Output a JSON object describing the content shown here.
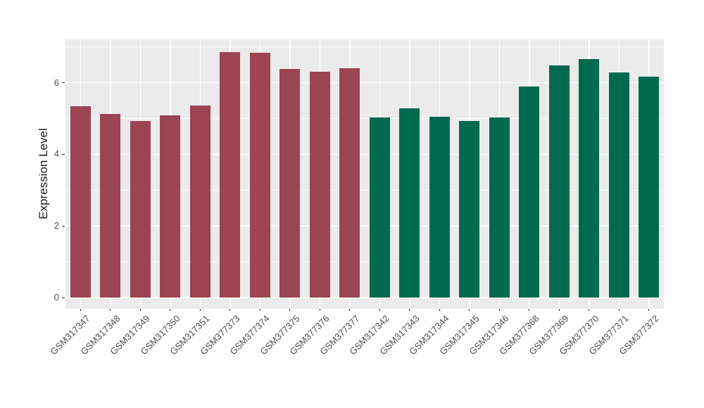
{
  "figure": {
    "background": "#FFFFFF",
    "panel_background": "#EBEBEB",
    "gridline_color": "#FFFFFF",
    "tick_mark_color": "#333333",
    "axis_text_color": "#4D4D4D",
    "axis_title_color": "#1A1A1A"
  },
  "chart_data": {
    "type": "bar",
    "title": "",
    "xlabel": "",
    "ylabel": "Expression Level",
    "ylim": [
      -0.35,
      7.25
    ],
    "y_major_ticks": [
      0,
      2,
      4,
      6
    ],
    "y_minor_gridlines": [
      1,
      3,
      5,
      7
    ],
    "grid": "on",
    "legend_position": "none",
    "group_colors": {
      "group1": "#9C4454",
      "group2": "#006A4E"
    },
    "categories": [
      "GSM317347",
      "GSM317348",
      "GSM317349",
      "GSM317350",
      "GSM317351",
      "GSM377373",
      "GSM377374",
      "GSM377375",
      "GSM377376",
      "GSM377377",
      "GSM317342",
      "GSM317343",
      "GSM317344",
      "GSM317345",
      "GSM317346",
      "GSM377368",
      "GSM377369",
      "GSM377370",
      "GSM377371",
      "GSM377372"
    ],
    "values": [
      5.34,
      5.13,
      4.93,
      5.09,
      5.36,
      6.86,
      6.83,
      6.39,
      6.31,
      6.4,
      5.03,
      5.29,
      5.05,
      4.93,
      5.03,
      5.89,
      6.48,
      6.66,
      6.28,
      6.17
    ],
    "bar_groups": [
      "group1",
      "group1",
      "group1",
      "group1",
      "group1",
      "group1",
      "group1",
      "group1",
      "group1",
      "group1",
      "group2",
      "group2",
      "group2",
      "group2",
      "group2",
      "group2",
      "group2",
      "group2",
      "group2",
      "group2"
    ]
  }
}
